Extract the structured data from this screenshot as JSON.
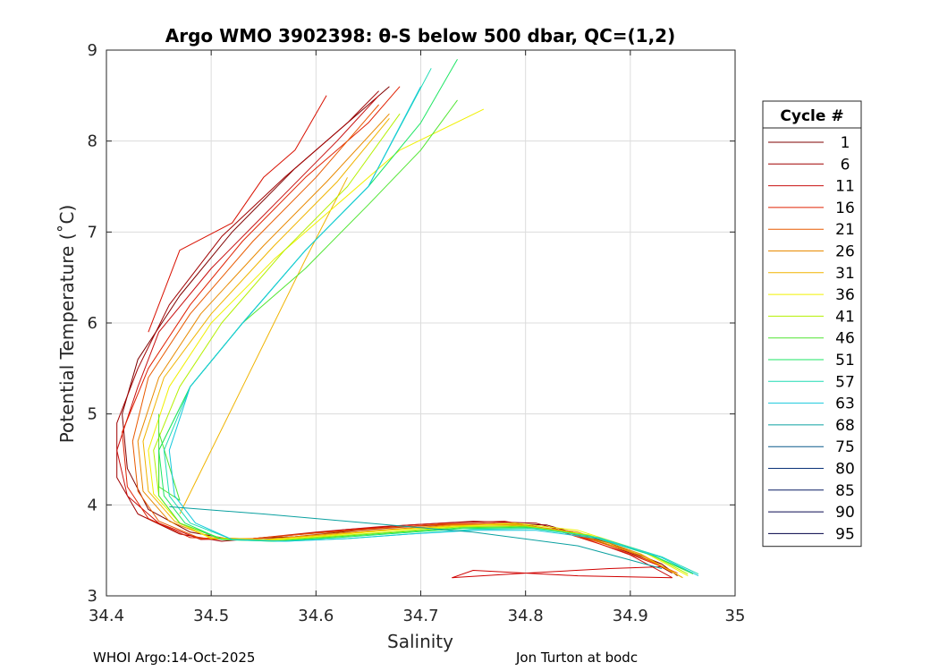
{
  "chart_data": {
    "type": "line",
    "title": "Argo WMO 3902398: θ-S below 500 dbar,  QC=(1,2)",
    "xlabel": "Salinity",
    "ylabel": "Potential Temperature (˚C)",
    "xlim": [
      34.4,
      35
    ],
    "ylim": [
      3,
      9
    ],
    "xticks": [
      "34.4",
      "34.5",
      "34.6",
      "34.7",
      "34.8",
      "34.9",
      "35"
    ],
    "yticks": [
      "3",
      "4",
      "5",
      "6",
      "7",
      "8",
      "9"
    ],
    "grid": true,
    "legend": {
      "title": "Cycle #",
      "placement": "right",
      "entries": [
        {
          "label": "1",
          "color": "#7f0000"
        },
        {
          "label": "6",
          "color": "#a00000"
        },
        {
          "label": "11",
          "color": "#c81010"
        },
        {
          "label": "16",
          "color": "#e02000"
        },
        {
          "label": "21",
          "color": "#e85a00"
        },
        {
          "label": "26",
          "color": "#e88a00"
        },
        {
          "label": "31",
          "color": "#f0b400"
        },
        {
          "label": "36",
          "color": "#f0f000"
        },
        {
          "label": "41",
          "color": "#b4f000"
        },
        {
          "label": "46",
          "color": "#50e632"
        },
        {
          "label": "51",
          "color": "#1ee664"
        },
        {
          "label": "57",
          "color": "#1edcb4"
        },
        {
          "label": "63",
          "color": "#14c8dc"
        },
        {
          "label": "68",
          "color": "#0aa0a0"
        },
        {
          "label": "75",
          "color": "#0a5a8c"
        },
        {
          "label": "80",
          "color": "#0a3278"
        },
        {
          "label": "85",
          "color": "#0a1e64"
        },
        {
          "label": "90",
          "color": "#0a0a50"
        },
        {
          "label": "95",
          "color": "#000046"
        }
      ]
    },
    "series": [
      {
        "color": "#7f0000",
        "x": [
          34.945,
          34.93,
          34.88,
          34.82,
          34.76,
          34.7,
          34.64,
          34.58,
          34.52,
          34.48,
          34.44,
          34.42,
          34.415,
          34.43,
          34.47,
          34.52,
          34.58,
          34.64,
          34.67
        ],
        "y": [
          3.22,
          3.35,
          3.58,
          3.78,
          3.8,
          3.77,
          3.72,
          3.65,
          3.62,
          3.7,
          3.95,
          4.4,
          5.0,
          5.6,
          6.3,
          7.0,
          7.7,
          8.3,
          8.6
        ]
      },
      {
        "color": "#a00000",
        "x": [
          34.94,
          34.92,
          34.87,
          34.81,
          34.75,
          34.69,
          34.63,
          34.57,
          34.51,
          34.47,
          34.43,
          34.41,
          34.41,
          34.43,
          34.46,
          34.51,
          34.57,
          34.63,
          34.66
        ],
        "y": [
          3.25,
          3.38,
          3.6,
          3.8,
          3.82,
          3.78,
          3.73,
          3.66,
          3.6,
          3.68,
          3.9,
          4.3,
          4.9,
          5.5,
          6.2,
          6.95,
          7.6,
          8.2,
          8.55
        ]
      },
      {
        "color": "#c81010",
        "x": [
          34.94,
          34.9,
          34.84,
          34.78,
          34.72,
          34.66,
          34.6,
          34.54,
          34.49,
          34.45,
          34.42,
          34.41,
          34.43,
          34.45,
          34.5,
          34.56,
          34.62,
          34.66
        ],
        "y": [
          3.2,
          3.45,
          3.7,
          3.82,
          3.8,
          3.76,
          3.7,
          3.63,
          3.62,
          3.8,
          4.1,
          4.6,
          5.3,
          5.9,
          6.6,
          7.3,
          8.0,
          8.5
        ]
      },
      {
        "color": "#d00000",
        "x": [
          34.94,
          34.85,
          34.75,
          34.73,
          34.8,
          34.88,
          34.93
        ],
        "y": [
          3.2,
          3.22,
          3.28,
          3.2,
          3.25,
          3.3,
          3.32
        ]
      },
      {
        "color": "#d81000",
        "x": [
          34.44,
          34.47,
          34.52,
          34.55,
          34.58,
          34.61
        ],
        "y": [
          5.9,
          6.8,
          7.1,
          7.6,
          7.9,
          8.5
        ]
      },
      {
        "color": "#e02000",
        "x": [
          34.935,
          34.89,
          34.83,
          34.77,
          34.71,
          34.65,
          34.59,
          34.53,
          34.48,
          34.44,
          34.42,
          34.415,
          34.44,
          34.48,
          34.53,
          34.59,
          34.65,
          34.68
        ],
        "y": [
          3.3,
          3.5,
          3.72,
          3.8,
          3.78,
          3.74,
          3.68,
          3.62,
          3.64,
          3.85,
          4.2,
          4.8,
          5.5,
          6.2,
          6.9,
          7.6,
          8.2,
          8.6
        ]
      },
      {
        "color": "#e85a00",
        "x": [
          34.945,
          34.9,
          34.84,
          34.78,
          34.72,
          34.66,
          34.6,
          34.54,
          34.49,
          34.45,
          34.43,
          34.425,
          34.44,
          34.48,
          34.54,
          34.6,
          34.66
        ],
        "y": [
          3.25,
          3.48,
          3.7,
          3.8,
          3.79,
          3.74,
          3.69,
          3.63,
          3.63,
          3.82,
          4.15,
          4.7,
          5.4,
          6.1,
          6.9,
          7.6,
          8.4
        ]
      },
      {
        "color": "#e88a00",
        "x": [
          34.95,
          34.91,
          34.85,
          34.79,
          34.73,
          34.67,
          34.61,
          34.55,
          34.5,
          34.46,
          34.435,
          34.43,
          34.45,
          34.49,
          34.55,
          34.61,
          34.67
        ],
        "y": [
          3.2,
          3.46,
          3.7,
          3.79,
          3.78,
          3.73,
          3.68,
          3.62,
          3.64,
          3.82,
          4.15,
          4.7,
          5.4,
          6.1,
          6.85,
          7.55,
          8.3
        ]
      },
      {
        "color": "#f0b400",
        "x": [
          34.47,
          34.53,
          34.59,
          34.63
        ],
        "y": [
          3.9,
          5.3,
          6.7,
          7.6
        ]
      },
      {
        "color": "#f0b400",
        "x": [
          34.95,
          34.91,
          34.85,
          34.79,
          34.73,
          34.67,
          34.61,
          34.55,
          34.5,
          34.465,
          34.44,
          34.435,
          34.455,
          34.5,
          34.56,
          34.62,
          34.67
        ],
        "y": [
          3.2,
          3.45,
          3.68,
          3.78,
          3.77,
          3.72,
          3.67,
          3.62,
          3.64,
          3.82,
          4.15,
          4.7,
          5.4,
          6.1,
          6.85,
          7.55,
          8.25
        ]
      },
      {
        "color": "#f0f000",
        "x": [
          34.955,
          34.91,
          34.85,
          34.79,
          34.73,
          34.67,
          34.61,
          34.55,
          34.5,
          34.47,
          34.445,
          34.44,
          34.46,
          34.5,
          34.56,
          34.62,
          34.68,
          34.76
        ],
        "y": [
          3.22,
          3.5,
          3.72,
          3.8,
          3.76,
          3.72,
          3.66,
          3.61,
          3.63,
          3.8,
          4.12,
          4.6,
          5.3,
          6.0,
          6.7,
          7.3,
          7.9,
          8.35
        ]
      },
      {
        "color": "#b4f000",
        "x": [
          34.955,
          34.92,
          34.86,
          34.8,
          34.74,
          34.68,
          34.62,
          34.56,
          34.51,
          34.47,
          34.45,
          34.445,
          34.47,
          34.51,
          34.57,
          34.63,
          34.68
        ],
        "y": [
          3.24,
          3.45,
          3.67,
          3.77,
          3.76,
          3.71,
          3.66,
          3.61,
          3.63,
          3.8,
          4.1,
          4.6,
          5.3,
          6.0,
          6.8,
          7.5,
          8.3
        ]
      },
      {
        "color": "#50e632",
        "x": [
          34.96,
          34.92,
          34.86,
          34.8,
          34.74,
          34.68,
          34.62,
          34.56,
          34.51,
          34.47,
          34.45,
          34.45,
          34.48,
          34.53,
          34.59,
          34.65,
          34.7,
          34.735
        ],
        "y": [
          3.24,
          3.45,
          3.66,
          3.76,
          3.75,
          3.7,
          3.65,
          3.6,
          3.62,
          3.8,
          4.1,
          4.6,
          5.3,
          6.0,
          6.6,
          7.3,
          7.9,
          8.45
        ]
      },
      {
        "color": "#50e632",
        "x": [
          34.45,
          34.47,
          34.45,
          34.45
        ],
        "y": [
          4.8,
          4.05,
          4.2,
          5.0
        ]
      },
      {
        "color": "#1ee664",
        "x": [
          34.96,
          34.92,
          34.86,
          34.8,
          34.74,
          34.68,
          34.62,
          34.56,
          34.51,
          34.475,
          34.455,
          34.45,
          34.48,
          34.53,
          34.59,
          34.65,
          34.7,
          34.735
        ],
        "y": [
          3.25,
          3.45,
          3.66,
          3.75,
          3.74,
          3.69,
          3.64,
          3.6,
          3.62,
          3.8,
          4.1,
          4.6,
          5.3,
          6.0,
          6.8,
          7.5,
          8.2,
          8.9
        ]
      },
      {
        "color": "#1edcb4",
        "x": [
          34.965,
          34.93,
          34.87,
          34.81,
          34.75,
          34.69,
          34.63,
          34.57,
          34.52,
          34.48,
          34.46,
          34.455,
          34.48,
          34.53,
          34.59,
          34.65,
          34.71
        ],
        "y": [
          3.24,
          3.43,
          3.64,
          3.74,
          3.73,
          3.68,
          3.63,
          3.6,
          3.62,
          3.8,
          4.1,
          4.6,
          5.3,
          6.0,
          6.8,
          7.5,
          8.8
        ]
      },
      {
        "color": "#14c8dc",
        "x": [
          34.965,
          34.93,
          34.87,
          34.81,
          34.75,
          34.69,
          34.63,
          34.57,
          34.52,
          34.485,
          34.465,
          34.46,
          34.48,
          34.53,
          34.59,
          34.65,
          34.7
        ],
        "y": [
          3.22,
          3.42,
          3.63,
          3.72,
          3.72,
          3.68,
          3.63,
          3.6,
          3.62,
          3.8,
          4.1,
          4.6,
          5.3,
          6.0,
          6.8,
          7.5,
          8.6
        ]
      },
      {
        "color": "#0aa0a0",
        "x": [
          34.46,
          34.55,
          34.65,
          34.75,
          34.85,
          34.93
        ],
        "y": [
          3.98,
          3.9,
          3.8,
          3.7,
          3.55,
          3.3
        ]
      }
    ]
  },
  "footer": {
    "left": "WHOI Argo:14-Oct-2025",
    "right": "Jon Turton at bodc"
  }
}
